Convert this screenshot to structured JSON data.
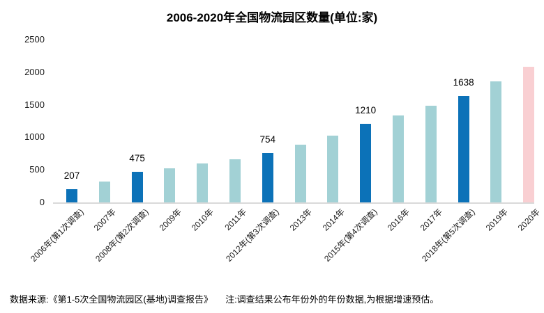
{
  "footer": {
    "source": "数据来源:《第1-5次全国物流园区(基地)调查报告》",
    "note": "注:调查结果公布年份外的年份数据,为根据增速预估。"
  },
  "colors": {
    "survey": "#0c72b8",
    "estimate": "#a2d1d5",
    "forecast": "#f9cfd2",
    "axis_line": "#d9d9d9",
    "text": "#1a1a1a"
  },
  "chart_data": {
    "type": "bar",
    "title": "2006-2020年全国物流园区数量(单位:家)",
    "categories": [
      "2006年(第1次调查)",
      "2007年",
      "2008年(第2次调查)",
      "2009年",
      "2010年",
      "2011年",
      "2012年(第3次调查)",
      "2013年",
      "2014年",
      "2015年(第4次调查)",
      "2016年",
      "2017年",
      "2018年(第5次调查)",
      "2019年",
      "2020年"
    ],
    "values": [
      207,
      317,
      475,
      527,
      595,
      663,
      754,
      883,
      1030,
      1210,
      1336,
      1483,
      1638,
      1856,
      2087
    ],
    "bar_types": [
      "survey",
      "estimate",
      "survey",
      "estimate",
      "estimate",
      "estimate",
      "survey",
      "estimate",
      "estimate",
      "survey",
      "estimate",
      "estimate",
      "survey",
      "estimate",
      "forecast"
    ],
    "labeled_indices": [
      0,
      2,
      6,
      9,
      12
    ],
    "shown_value_labels": [
      "207",
      "475",
      "754",
      "1210",
      "1638"
    ],
    "ylim": [
      0,
      2500
    ],
    "yticks": [
      0,
      500,
      1000,
      1500,
      2000,
      2500
    ],
    "xlabel": "",
    "ylabel": "",
    "grid": false,
    "legend": "none"
  }
}
